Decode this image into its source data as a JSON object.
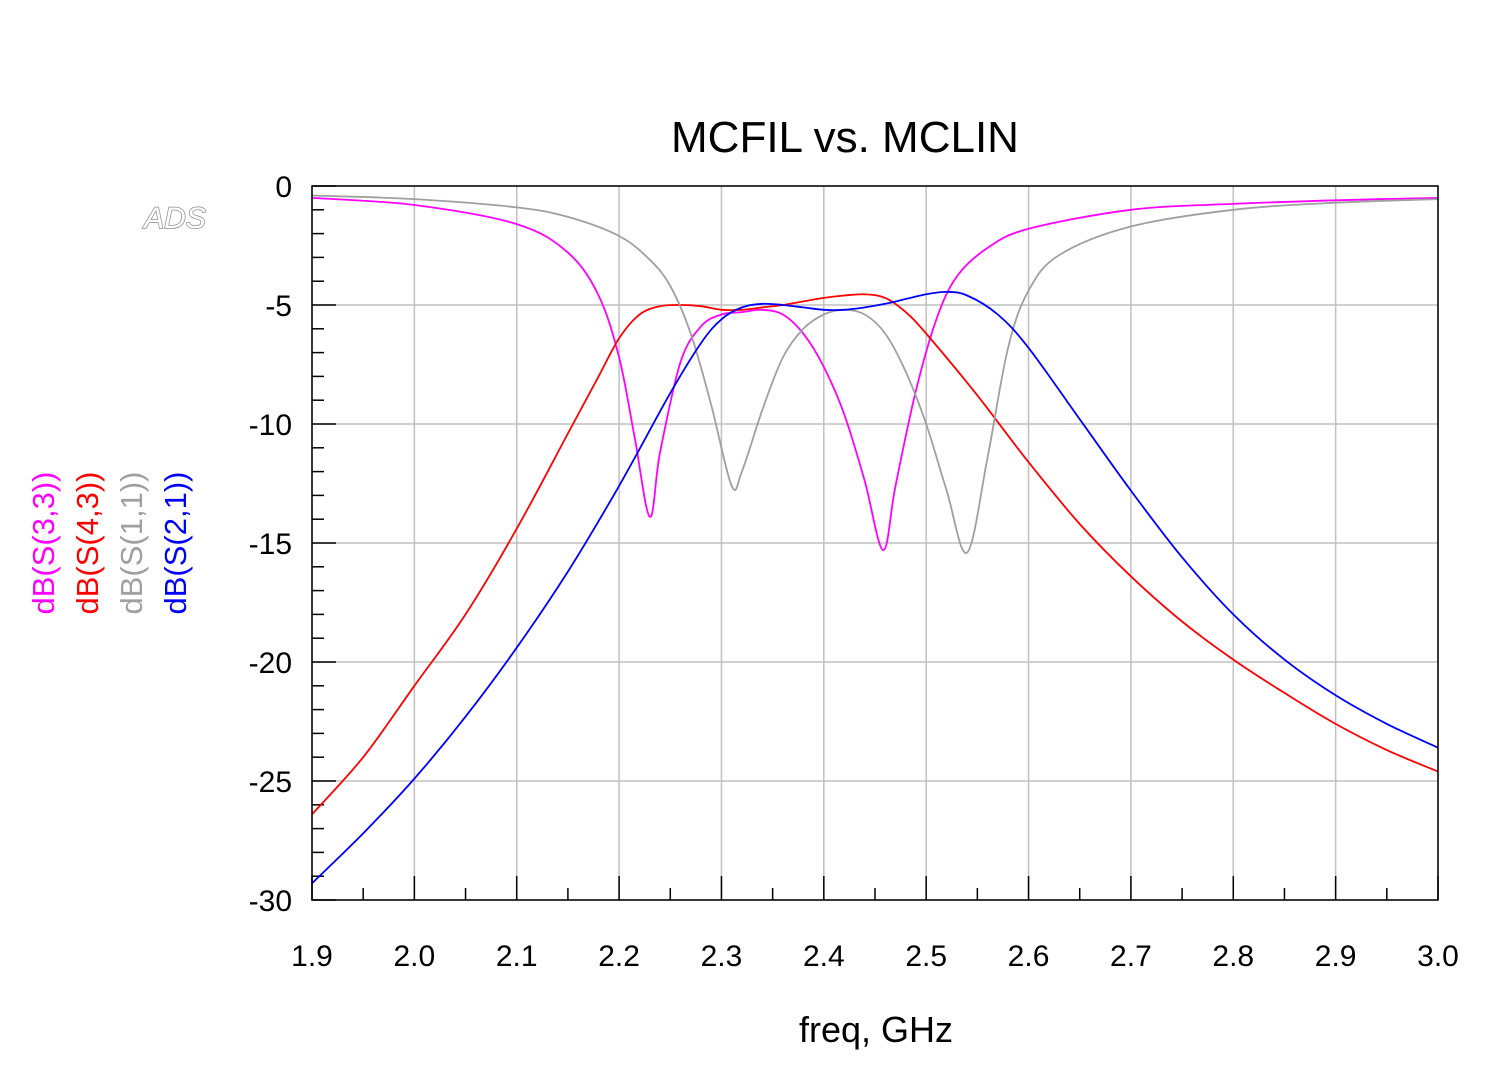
{
  "watermark": "ADS",
  "chart_data": {
    "type": "line",
    "title": "MCFIL vs. MCLIN",
    "xlabel": "freq, GHz",
    "ylabel": "",
    "xlim": [
      1.9,
      3.0
    ],
    "ylim": [
      -30,
      0
    ],
    "x_ticks": [
      "1.9",
      "2.0",
      "2.1",
      "2.2",
      "2.3",
      "2.4",
      "2.5",
      "2.6",
      "2.7",
      "2.8",
      "2.9",
      "3.0"
    ],
    "y_ticks": [
      "0",
      "-5",
      "-10",
      "-15",
      "-20",
      "-25",
      "-30"
    ],
    "grid": true,
    "legend_placement": "left-vertical",
    "series": [
      {
        "name": "dB(S(3,3))",
        "color": "#ff00ff",
        "points": [
          [
            1.9,
            -0.5
          ],
          [
            2.0,
            -0.8
          ],
          [
            2.1,
            -1.6
          ],
          [
            2.15,
            -2.8
          ],
          [
            2.18,
            -4.6
          ],
          [
            2.2,
            -7.2
          ],
          [
            2.215,
            -10.5
          ],
          [
            2.23,
            -13.9
          ],
          [
            2.24,
            -11.2
          ],
          [
            2.26,
            -7.4
          ],
          [
            2.28,
            -5.9
          ],
          [
            2.3,
            -5.4
          ],
          [
            2.32,
            -5.3
          ],
          [
            2.34,
            -5.2
          ],
          [
            2.36,
            -5.4
          ],
          [
            2.38,
            -6.2
          ],
          [
            2.4,
            -7.6
          ],
          [
            2.42,
            -9.6
          ],
          [
            2.44,
            -12.4
          ],
          [
            2.458,
            -15.3
          ],
          [
            2.47,
            -12.6
          ],
          [
            2.49,
            -8.6
          ],
          [
            2.51,
            -5.6
          ],
          [
            2.53,
            -3.8
          ],
          [
            2.56,
            -2.6
          ],
          [
            2.6,
            -1.8
          ],
          [
            2.7,
            -1.0
          ],
          [
            2.8,
            -0.75
          ],
          [
            2.9,
            -0.6
          ],
          [
            3.0,
            -0.5
          ]
        ]
      },
      {
        "name": "dB(S(4,3))",
        "color": "#ff0000",
        "points": [
          [
            1.9,
            -26.4
          ],
          [
            1.95,
            -24.0
          ],
          [
            2.0,
            -21.0
          ],
          [
            2.05,
            -18.0
          ],
          [
            2.1,
            -14.4
          ],
          [
            2.15,
            -10.4
          ],
          [
            2.18,
            -8.0
          ],
          [
            2.2,
            -6.4
          ],
          [
            2.22,
            -5.4
          ],
          [
            2.24,
            -5.05
          ],
          [
            2.26,
            -5.0
          ],
          [
            2.28,
            -5.05
          ],
          [
            2.3,
            -5.2
          ],
          [
            2.32,
            -5.2
          ],
          [
            2.34,
            -5.1
          ],
          [
            2.36,
            -5.0
          ],
          [
            2.38,
            -4.85
          ],
          [
            2.4,
            -4.7
          ],
          [
            2.42,
            -4.6
          ],
          [
            2.44,
            -4.55
          ],
          [
            2.46,
            -4.7
          ],
          [
            2.48,
            -5.3
          ],
          [
            2.5,
            -6.2
          ],
          [
            2.55,
            -8.8
          ],
          [
            2.6,
            -11.6
          ],
          [
            2.65,
            -14.2
          ],
          [
            2.7,
            -16.4
          ],
          [
            2.75,
            -18.3
          ],
          [
            2.8,
            -19.9
          ],
          [
            2.85,
            -21.3
          ],
          [
            2.9,
            -22.6
          ],
          [
            2.95,
            -23.7
          ],
          [
            3.0,
            -24.6
          ]
        ]
      },
      {
        "name": "dB(S(1,1))",
        "color": "#a0a0a0",
        "points": [
          [
            1.9,
            -0.4
          ],
          [
            2.0,
            -0.55
          ],
          [
            2.1,
            -0.9
          ],
          [
            2.15,
            -1.3
          ],
          [
            2.2,
            -2.1
          ],
          [
            2.23,
            -3.1
          ],
          [
            2.25,
            -4.2
          ],
          [
            2.27,
            -6.2
          ],
          [
            2.29,
            -9.2
          ],
          [
            2.31,
            -12.6
          ],
          [
            2.32,
            -12.0
          ],
          [
            2.34,
            -9.4
          ],
          [
            2.36,
            -7.2
          ],
          [
            2.38,
            -6.0
          ],
          [
            2.4,
            -5.4
          ],
          [
            2.42,
            -5.2
          ],
          [
            2.44,
            -5.4
          ],
          [
            2.46,
            -6.2
          ],
          [
            2.48,
            -7.8
          ],
          [
            2.5,
            -10.0
          ],
          [
            2.52,
            -12.8
          ],
          [
            2.54,
            -15.4
          ],
          [
            2.56,
            -11.4
          ],
          [
            2.58,
            -6.8
          ],
          [
            2.6,
            -4.4
          ],
          [
            2.63,
            -2.9
          ],
          [
            2.7,
            -1.7
          ],
          [
            2.8,
            -1.0
          ],
          [
            2.9,
            -0.7
          ],
          [
            3.0,
            -0.55
          ]
        ]
      },
      {
        "name": "dB(S(2,1))",
        "color": "#0000ff",
        "points": [
          [
            1.9,
            -29.3
          ],
          [
            1.95,
            -27.2
          ],
          [
            2.0,
            -24.9
          ],
          [
            2.05,
            -22.3
          ],
          [
            2.1,
            -19.4
          ],
          [
            2.15,
            -16.2
          ],
          [
            2.2,
            -12.6
          ],
          [
            2.25,
            -8.7
          ],
          [
            2.28,
            -6.6
          ],
          [
            2.3,
            -5.6
          ],
          [
            2.32,
            -5.1
          ],
          [
            2.34,
            -4.95
          ],
          [
            2.36,
            -5.0
          ],
          [
            2.38,
            -5.1
          ],
          [
            2.4,
            -5.2
          ],
          [
            2.42,
            -5.2
          ],
          [
            2.44,
            -5.1
          ],
          [
            2.46,
            -4.95
          ],
          [
            2.48,
            -4.75
          ],
          [
            2.5,
            -4.55
          ],
          [
            2.52,
            -4.45
          ],
          [
            2.54,
            -4.6
          ],
          [
            2.57,
            -5.4
          ],
          [
            2.6,
            -6.8
          ],
          [
            2.65,
            -9.8
          ],
          [
            2.7,
            -12.8
          ],
          [
            2.75,
            -15.6
          ],
          [
            2.8,
            -18.0
          ],
          [
            2.85,
            -19.9
          ],
          [
            2.9,
            -21.4
          ],
          [
            2.95,
            -22.6
          ],
          [
            3.0,
            -23.6
          ]
        ]
      }
    ]
  }
}
